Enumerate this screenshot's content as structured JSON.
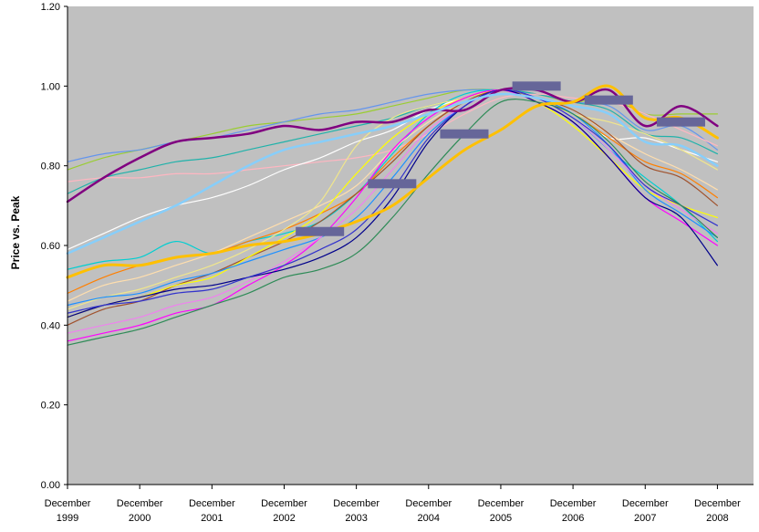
{
  "chart_data": {
    "type": "line",
    "title": "",
    "xlabel": "",
    "ylabel": "Price vs. Peak",
    "ylim": [
      0,
      1.2
    ],
    "xlim": [
      1999.92,
      2009.42
    ],
    "y_ticks": [
      "0.00",
      "0.20",
      "0.40",
      "0.60",
      "0.80",
      "1.00",
      "1.20"
    ],
    "x_ticks": [
      {
        "x": 1999.92,
        "line1": "December",
        "line2": "1999"
      },
      {
        "x": 2000.92,
        "line1": "December",
        "line2": "2000"
      },
      {
        "x": 2001.92,
        "line1": "December",
        "line2": "2001"
      },
      {
        "x": 2002.92,
        "line1": "December",
        "line2": "2002"
      },
      {
        "x": 2003.92,
        "line1": "December",
        "line2": "2003"
      },
      {
        "x": 2004.92,
        "line1": "December",
        "line2": "2004"
      },
      {
        "x": 2005.92,
        "line1": "December",
        "line2": "2005"
      },
      {
        "x": 2006.92,
        "line1": "December",
        "line2": "2006"
      },
      {
        "x": 2007.92,
        "line1": "December",
        "line2": "2007"
      },
      {
        "x": 2008.92,
        "line1": "December",
        "line2": "2008"
      }
    ],
    "grid": false,
    "legend": "none",
    "plot_background": "#c0c0c0",
    "x": [
      1999.92,
      2000.42,
      2000.92,
      2001.42,
      2001.92,
      2002.42,
      2002.92,
      2003.42,
      2003.92,
      2004.42,
      2004.92,
      2005.42,
      2005.92,
      2006.42,
      2006.92,
      2007.42,
      2007.92,
      2008.42,
      2008.92
    ],
    "series": [
      {
        "color": "#800080",
        "width": 2.5,
        "values": [
          0.71,
          0.77,
          0.82,
          0.86,
          0.87,
          0.88,
          0.9,
          0.89,
          0.91,
          0.91,
          0.94,
          0.94,
          0.99,
          0.99,
          0.96,
          0.99,
          0.9,
          0.95,
          0.9
        ]
      },
      {
        "color": "#ffc000",
        "width": 3,
        "values": [
          0.52,
          0.55,
          0.55,
          0.57,
          0.58,
          0.6,
          0.61,
          0.63,
          0.66,
          0.7,
          0.77,
          0.84,
          0.89,
          0.95,
          0.96,
          1.0,
          0.92,
          0.92,
          0.87
        ]
      },
      {
        "color": "#9acd32",
        "width": 1.2,
        "values": [
          0.79,
          0.82,
          0.84,
          0.86,
          0.88,
          0.9,
          0.91,
          0.92,
          0.93,
          0.95,
          0.97,
          0.99,
          0.99,
          0.98,
          0.96,
          0.97,
          0.93,
          0.93,
          0.93
        ]
      },
      {
        "color": "#6495ed",
        "width": 1.2,
        "values": [
          0.81,
          0.83,
          0.84,
          0.86,
          0.87,
          0.89,
          0.91,
          0.93,
          0.94,
          0.96,
          0.98,
          0.99,
          0.99,
          0.98,
          0.96,
          0.95,
          0.89,
          0.9,
          0.84
        ]
      },
      {
        "color": "#20b2aa",
        "width": 1.2,
        "values": [
          0.73,
          0.77,
          0.79,
          0.81,
          0.82,
          0.84,
          0.86,
          0.88,
          0.9,
          0.92,
          0.95,
          0.97,
          0.99,
          0.98,
          0.96,
          0.94,
          0.88,
          0.87,
          0.83
        ]
      },
      {
        "color": "#87cefa",
        "width": 2.5,
        "values": [
          0.58,
          0.62,
          0.66,
          0.7,
          0.75,
          0.8,
          0.84,
          0.86,
          0.88,
          0.9,
          0.93,
          0.96,
          0.98,
          0.97,
          0.95,
          0.93,
          0.86,
          0.85,
          0.8
        ]
      },
      {
        "color": "#ffb6c1",
        "width": 1.2,
        "values": [
          0.76,
          0.77,
          0.77,
          0.78,
          0.78,
          0.79,
          0.8,
          0.81,
          0.82,
          0.84,
          0.88,
          0.93,
          0.97,
          0.98,
          0.97,
          0.96,
          0.93,
          0.89,
          0.85
        ]
      },
      {
        "color": "#ffffff",
        "width": 1.2,
        "values": [
          0.59,
          0.63,
          0.67,
          0.7,
          0.72,
          0.75,
          0.79,
          0.82,
          0.86,
          0.89,
          0.94,
          0.97,
          0.99,
          0.97,
          0.93,
          0.87,
          0.87,
          0.84,
          0.81
        ]
      },
      {
        "color": "#00ced1",
        "width": 1.2,
        "values": [
          0.54,
          0.56,
          0.57,
          0.61,
          0.58,
          0.61,
          0.63,
          0.66,
          0.73,
          0.83,
          0.93,
          0.98,
          0.99,
          0.97,
          0.92,
          0.84,
          0.77,
          0.7,
          0.61
        ]
      },
      {
        "color": "#ff7f00",
        "width": 1.2,
        "values": [
          0.48,
          0.52,
          0.55,
          0.57,
          0.58,
          0.61,
          0.64,
          0.68,
          0.73,
          0.82,
          0.9,
          0.96,
          0.99,
          0.97,
          0.93,
          0.87,
          0.81,
          0.78,
          0.72
        ]
      },
      {
        "color": "#ffdead",
        "width": 1.2,
        "values": [
          0.46,
          0.5,
          0.52,
          0.55,
          0.58,
          0.62,
          0.66,
          0.7,
          0.75,
          0.84,
          0.91,
          0.96,
          0.99,
          0.97,
          0.94,
          0.88,
          0.83,
          0.79,
          0.74
        ]
      },
      {
        "color": "#f0e68c",
        "width": 1.2,
        "values": [
          0.44,
          0.47,
          0.49,
          0.52,
          0.55,
          0.59,
          0.64,
          0.71,
          0.85,
          0.92,
          0.95,
          0.97,
          0.99,
          0.97,
          0.93,
          0.91,
          0.88,
          0.84,
          0.79
        ]
      },
      {
        "color": "#a0522d",
        "width": 1.2,
        "values": [
          0.4,
          0.44,
          0.46,
          0.5,
          0.53,
          0.57,
          0.61,
          0.66,
          0.73,
          0.81,
          0.9,
          0.96,
          0.99,
          0.97,
          0.94,
          0.88,
          0.8,
          0.77,
          0.7
        ]
      },
      {
        "color": "#ffff00",
        "width": 1.2,
        "values": [
          0.42,
          0.45,
          0.47,
          0.5,
          0.52,
          0.57,
          0.62,
          0.68,
          0.78,
          0.87,
          0.93,
          0.97,
          0.99,
          0.96,
          0.9,
          0.82,
          0.74,
          0.7,
          0.67
        ]
      },
      {
        "color": "#1e90ff",
        "width": 1.2,
        "values": [
          0.45,
          0.47,
          0.48,
          0.51,
          0.53,
          0.56,
          0.59,
          0.62,
          0.67,
          0.77,
          0.88,
          0.95,
          0.99,
          0.97,
          0.93,
          0.85,
          0.74,
          0.68,
          0.62
        ]
      },
      {
        "color": "#ff00ff",
        "width": 1.2,
        "values": [
          0.36,
          0.38,
          0.4,
          0.43,
          0.45,
          0.5,
          0.55,
          0.62,
          0.72,
          0.84,
          0.92,
          0.97,
          0.99,
          0.96,
          0.91,
          0.82,
          0.72,
          0.66,
          0.6
        ]
      },
      {
        "color": "#ee82ee",
        "width": 1.2,
        "values": [
          0.38,
          0.4,
          0.42,
          0.45,
          0.47,
          0.51,
          0.56,
          0.62,
          0.69,
          0.79,
          0.89,
          0.95,
          0.99,
          0.97,
          0.92,
          0.84,
          0.75,
          0.69,
          0.63
        ]
      },
      {
        "color": "#00008b",
        "width": 1.2,
        "values": [
          0.42,
          0.45,
          0.47,
          0.49,
          0.5,
          0.52,
          0.54,
          0.57,
          0.62,
          0.72,
          0.86,
          0.95,
          0.99,
          0.96,
          0.91,
          0.82,
          0.72,
          0.67,
          0.55
        ]
      },
      {
        "color": "#3333cc",
        "width": 1.2,
        "values": [
          0.43,
          0.45,
          0.46,
          0.48,
          0.49,
          0.52,
          0.55,
          0.59,
          0.64,
          0.74,
          0.87,
          0.95,
          0.99,
          0.97,
          0.92,
          0.85,
          0.75,
          0.7,
          0.65
        ]
      },
      {
        "color": "#2e8b57",
        "width": 1.2,
        "values": [
          0.35,
          0.37,
          0.39,
          0.42,
          0.45,
          0.48,
          0.52,
          0.54,
          0.58,
          0.67,
          0.78,
          0.88,
          0.96,
          0.96,
          0.93,
          0.86,
          0.76,
          0.7,
          0.62
        ]
      }
    ],
    "markers": [
      {
        "color": "#666699",
        "x0": 2003.08,
        "x1": 2003.75,
        "y": 0.635
      },
      {
        "color": "#666699",
        "x0": 2004.08,
        "x1": 2004.75,
        "y": 0.755
      },
      {
        "color": "#666699",
        "x0": 2005.08,
        "x1": 2005.75,
        "y": 0.88
      },
      {
        "color": "#666699",
        "x0": 2006.08,
        "x1": 2006.75,
        "y": 1.0
      },
      {
        "color": "#666699",
        "x0": 2007.08,
        "x1": 2007.75,
        "y": 0.965
      },
      {
        "color": "#666699",
        "x0": 2008.08,
        "x1": 2008.75,
        "y": 0.91
      }
    ]
  }
}
